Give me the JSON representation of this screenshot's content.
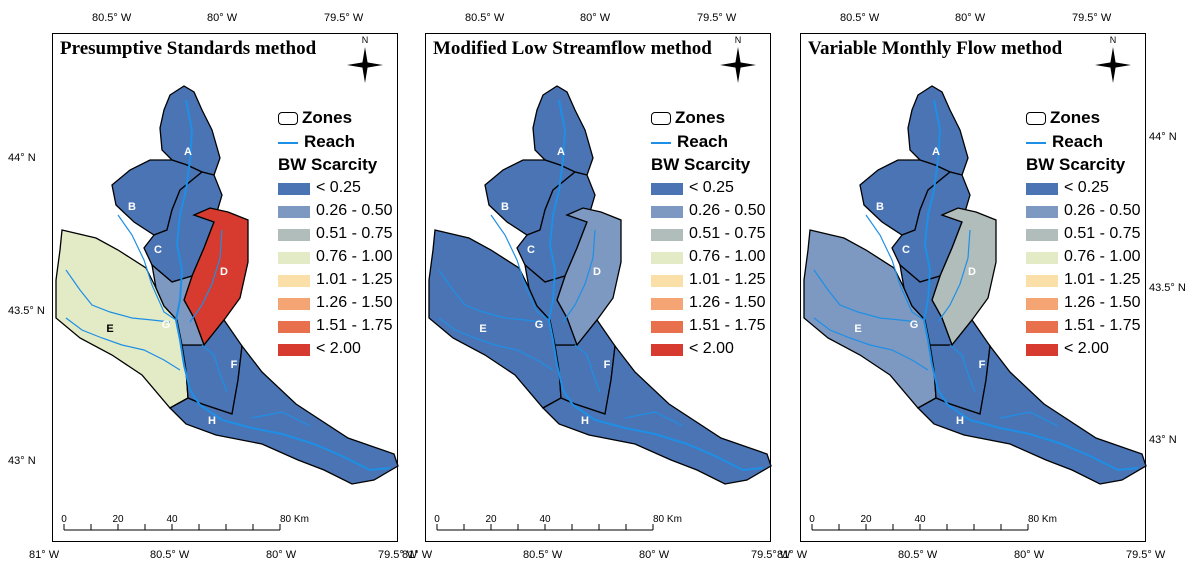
{
  "panels": [
    {
      "title": "Presumptive Standards method",
      "zone_colors": {
        "A": "#4a74b4",
        "B": "#4a74b4",
        "C": "#4a74b4",
        "D": "#d73a2e",
        "E": "#e3ebc6",
        "F": "#4a74b4",
        "G": "#7d99c1",
        "H": "#4a74b4"
      }
    },
    {
      "title": "Modified Low Streamflow method",
      "zone_colors": {
        "A": "#4a74b4",
        "B": "#4a74b4",
        "C": "#4a74b4",
        "D": "#7d99c1",
        "E": "#4a74b4",
        "F": "#4a74b4",
        "G": "#4a74b4",
        "H": "#4a74b4"
      }
    },
    {
      "title": "Variable Monthly Flow method",
      "zone_colors": {
        "A": "#4a74b4",
        "B": "#4a74b4",
        "C": "#4a74b4",
        "D": "#b1bdbb",
        "E": "#7d99c1",
        "F": "#4a74b4",
        "G": "#4a74b4",
        "H": "#4a74b4"
      }
    }
  ],
  "legend": {
    "zones_label": "Zones",
    "reach_label": "Reach",
    "scarcity_title": "BW Scarcity",
    "classes": [
      {
        "label": "< 0.25",
        "color": "#4a74b4"
      },
      {
        "label": "0.26 - 0.50",
        "color": "#7d99c1"
      },
      {
        "label": "0.51 - 0.75",
        "color": "#b1bdbb"
      },
      {
        "label": "0.76 - 1.00",
        "color": "#e3ebc6"
      },
      {
        "label": "1.01 - 1.25",
        "color": "#fbdfa8"
      },
      {
        "label": "1.26 - 1.50",
        "color": "#f4a573"
      },
      {
        "label": "1.51 - 1.75",
        "color": "#e9704c"
      },
      {
        "label": "< 2.00",
        "color": "#d73a2e"
      }
    ]
  },
  "zone_labels": [
    "A",
    "B",
    "C",
    "D",
    "E",
    "F",
    "G",
    "H"
  ],
  "axes": {
    "top_ticks": [
      "80.5° W",
      "80° W",
      "79.5° W"
    ],
    "bottom_ticks": [
      "81° W",
      "80.5° W",
      "80° W",
      "79.5° W"
    ],
    "left_ticks": [
      "44° N",
      "43.5° N",
      "43° N"
    ],
    "right_ticks": [
      "44° N",
      "43.5° N",
      "43° N"
    ]
  },
  "scale": {
    "ticks": [
      "0",
      "20",
      "40",
      "80 Km"
    ]
  },
  "north_label": "N",
  "reach_color": "#1e8fe6"
}
